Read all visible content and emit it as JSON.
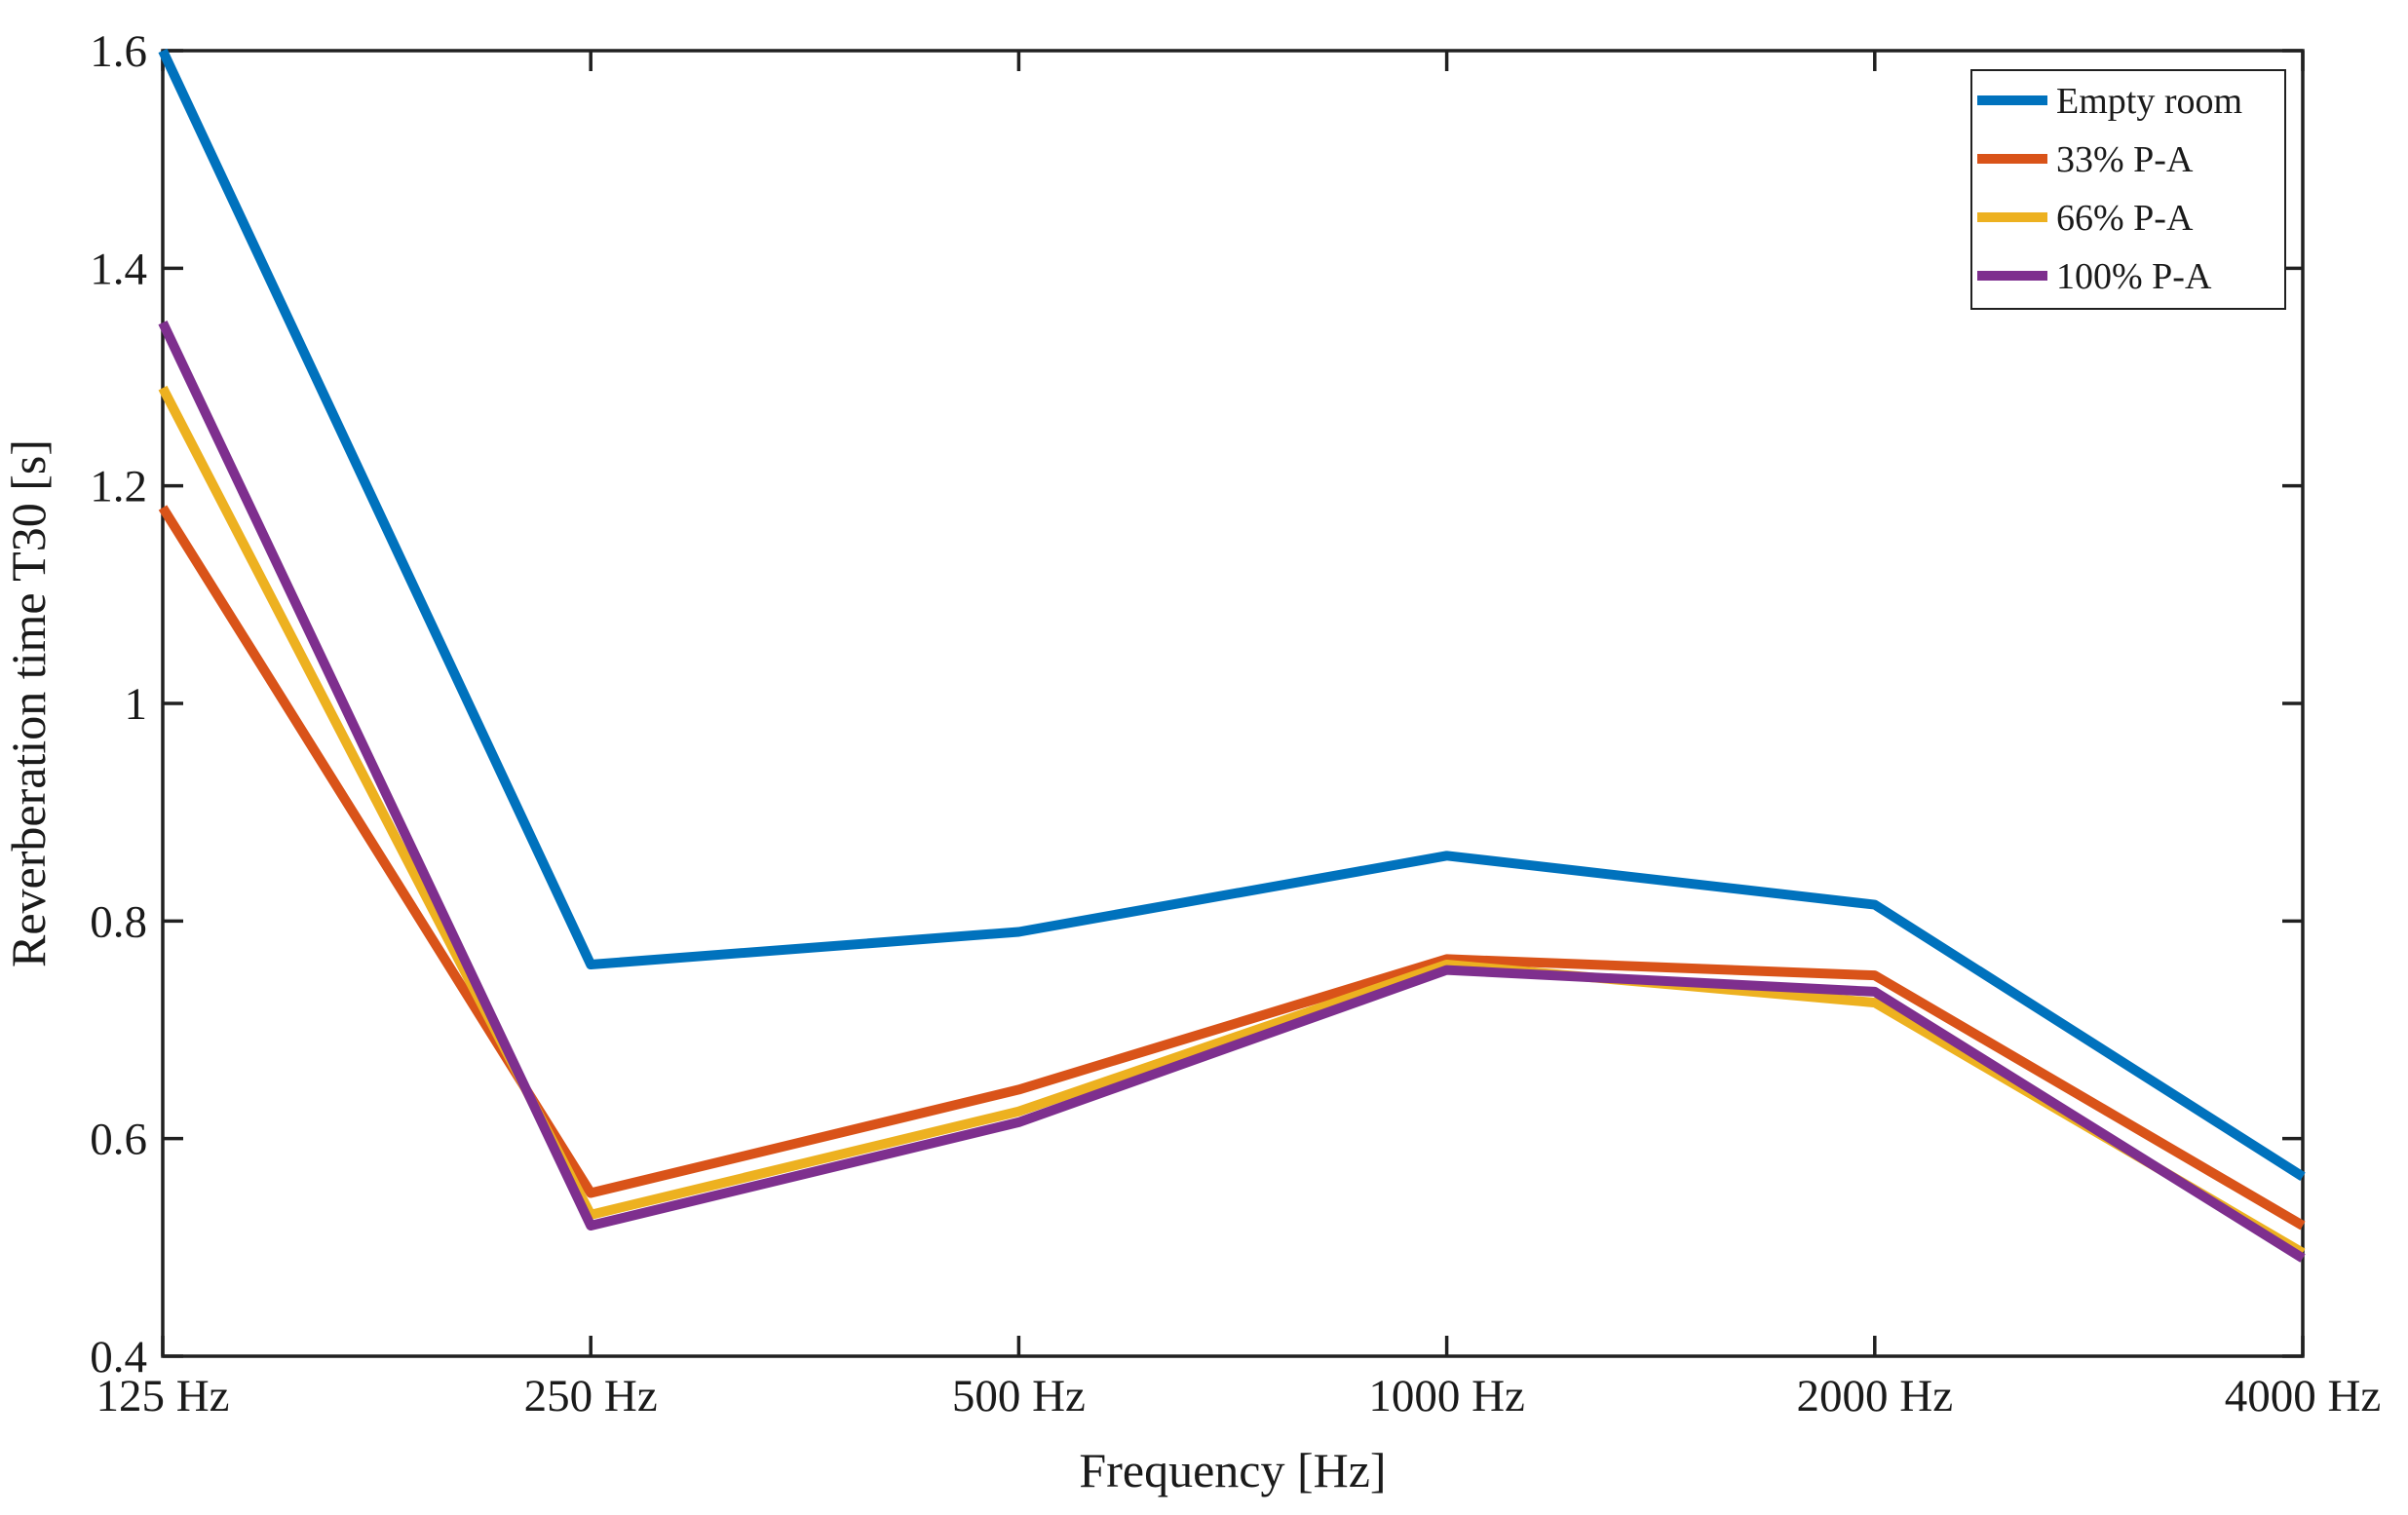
{
  "figure": {
    "background": "#ffffff",
    "axis_color": "#202020",
    "text_color": "#1a1a1a"
  },
  "chart_data": {
    "type": "line",
    "title": "",
    "xlabel": "Frequency [Hz]",
    "ylabel": "Reverberation time T30 [s]",
    "categories": [
      "125 Hz",
      "250 Hz",
      "500 Hz",
      "1000 Hz",
      "2000 Hz",
      "4000 Hz"
    ],
    "ylim": [
      0.4,
      1.6
    ],
    "y_ticks": [
      0.4,
      0.6,
      0.8,
      1,
      1.2,
      1.4,
      1.6
    ],
    "y_tick_labels": [
      "0.4",
      "0.6",
      "0.8",
      "1",
      "1.2",
      "1.4",
      "1.6"
    ],
    "grid": false,
    "legend_position": "top-right",
    "line_width": 10,
    "series": [
      {
        "name": "Empty room",
        "color": "#0072BD",
        "values": [
          1.6,
          0.76,
          0.79,
          0.86,
          0.815,
          0.565
        ]
      },
      {
        "name": "33% P-A",
        "color": "#D95319",
        "values": [
          1.18,
          0.55,
          0.645,
          0.765,
          0.75,
          0.52
        ]
      },
      {
        "name": "66% P-A",
        "color": "#EDB120",
        "values": [
          1.29,
          0.53,
          0.625,
          0.76,
          0.725,
          0.495
        ]
      },
      {
        "name": "100% P-A",
        "color": "#7E2F8E",
        "values": [
          1.35,
          0.52,
          0.615,
          0.755,
          0.735,
          0.49
        ]
      }
    ]
  }
}
